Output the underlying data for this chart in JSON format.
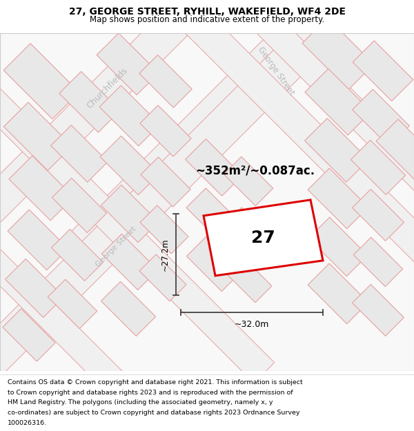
{
  "title": "27, GEORGE STREET, RYHILL, WAKEFIELD, WF4 2DE",
  "subtitle": "Map shows position and indicative extent of the property.",
  "footer_lines": [
    "Contains OS data © Crown copyright and database right 2021. This information is subject",
    "to Crown copyright and database rights 2023 and is reproduced with the permission of",
    "HM Land Registry. The polygons (including the associated geometry, namely x, y",
    "co-ordinates) are subject to Crown copyright and database rights 2023 Ordnance Survey",
    "100026316."
  ],
  "map_bg": "#f8f8f8",
  "building_fill": "#e8e8e8",
  "building_edge": "#e8a0a0",
  "road_fill": "#f0f0f0",
  "road_edge": "#e8a0a0",
  "highlight_stroke": "#dd0000",
  "highlight_fill": "#ffffff",
  "dim_line_color": "#444444",
  "area_text": "~352m²/~0.087ac.",
  "plot_label": "27",
  "dim_width": "~32.0m",
  "dim_height": "~27.2m",
  "label_color": "#bbbbbb",
  "street_label_1": "George Street",
  "street_label_2": "Churchfields",
  "title_fontsize": 10,
  "subtitle_fontsize": 8.5,
  "footer_fontsize": 6.8
}
